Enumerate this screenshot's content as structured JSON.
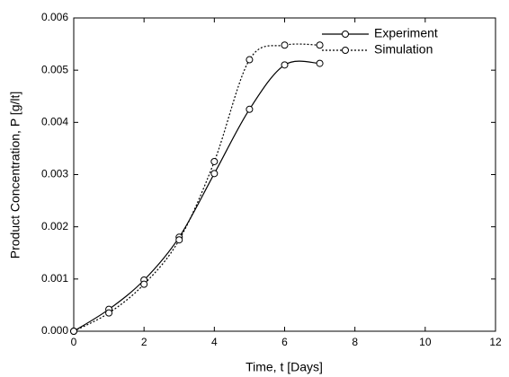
{
  "chart_data": {
    "type": "line",
    "x_label": "Time, t [Days]",
    "y_label": "Product Concentration, P [g/lt]",
    "xlim": [
      0,
      12
    ],
    "xticks": [
      0,
      2,
      4,
      6,
      8,
      10,
      12
    ],
    "ylim": [
      0,
      0.006
    ],
    "yticks": [
      {
        "value": 0,
        "label": "0.000"
      },
      {
        "value": 0.001,
        "label": "0.001"
      },
      {
        "value": 0.002,
        "label": "0.002"
      },
      {
        "value": 0.003,
        "label": "0.003"
      },
      {
        "value": 0.004,
        "label": "0.004"
      },
      {
        "value": 0.005,
        "label": "0.005"
      },
      {
        "value": 0.006,
        "label": "0.006"
      }
    ],
    "legend_position": "upper-right",
    "series": [
      {
        "name": "Experiment",
        "color": "#000000",
        "line_style": "solid",
        "x": [
          0,
          1,
          2,
          3,
          4,
          5,
          6,
          7
        ],
        "values": [
          0,
          0.00042,
          0.00098,
          0.0018,
          0.00302,
          0.00425,
          0.0051,
          0.00513
        ]
      },
      {
        "name": "Simulation",
        "color": "#000000",
        "line_style": "dotted",
        "x": [
          0,
          1,
          2,
          3,
          4,
          5,
          6,
          7
        ],
        "values": [
          0,
          0.00035,
          0.0009,
          0.00175,
          0.00325,
          0.0052,
          0.00548,
          0.00548
        ]
      }
    ]
  }
}
